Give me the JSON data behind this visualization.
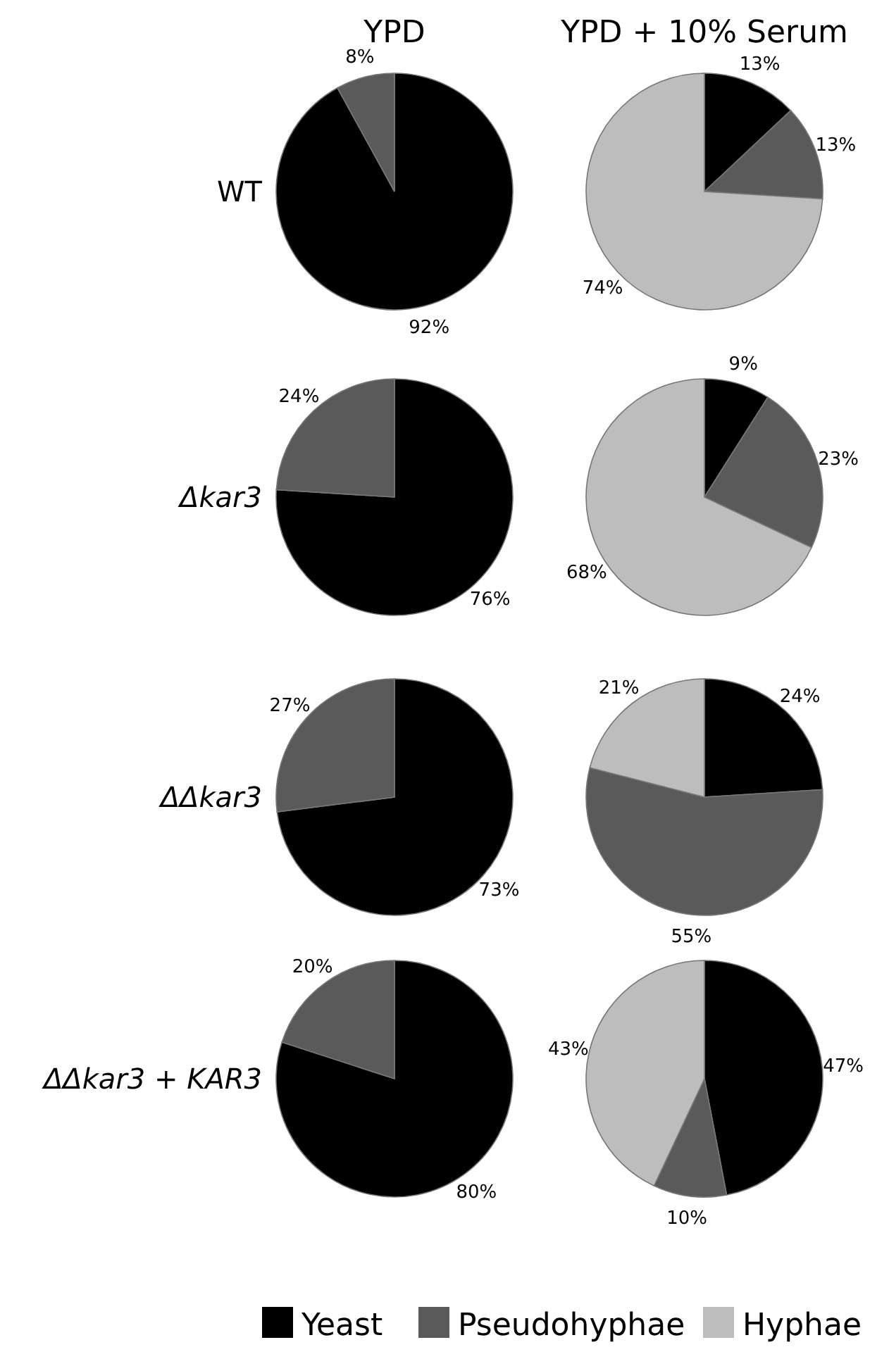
{
  "chart_data": [
    {
      "type": "pie",
      "title": "YPD",
      "ylabel": "WT",
      "categories": [
        "Yeast",
        "Pseudohyphae",
        "Hyphae"
      ],
      "values": [
        92,
        8,
        0
      ],
      "colors": [
        "#000000",
        "#5a5a5a",
        "#bdbdbd"
      ],
      "value_labels": [
        "92%",
        "8%",
        null
      ],
      "legend": "bottom"
    },
    {
      "type": "pie",
      "title": "YPD + 10% Serum",
      "categories": [
        null,
        null,
        null
      ],
      "values": [
        13,
        13,
        74
      ],
      "colors": [
        "#000000",
        "#5a5a5a",
        "#bdbdbd"
      ],
      "value_labels": [
        "13%",
        "13%",
        "74%"
      ]
    },
    {
      "type": "pie",
      "ylabel": "Δkar3",
      "categories": [
        null,
        null
      ],
      "values": [
        76,
        24
      ],
      "colors": [
        "#000000",
        "#5a5a5a"
      ],
      "value_labels": [
        "76%",
        "24%"
      ]
    },
    {
      "type": "pie",
      "categories": [
        null,
        null,
        null
      ],
      "values": [
        9,
        23,
        68
      ],
      "colors": [
        "#000000",
        "#5a5a5a",
        "#bdbdbd"
      ],
      "value_labels": [
        "9%",
        "23%",
        "68%"
      ]
    },
    {
      "type": "pie",
      "ylabel": "ΔΔkar3",
      "categories": [
        null,
        null
      ],
      "values": [
        73,
        27
      ],
      "colors": [
        "#000000",
        "#5a5a5a"
      ],
      "value_labels": [
        "73%",
        "27%"
      ]
    },
    {
      "type": "pie",
      "categories": [
        null,
        null,
        null
      ],
      "values": [
        24,
        55,
        21
      ],
      "colors": [
        "#000000",
        "#5a5a5a",
        "#bdbdbd"
      ],
      "value_labels": [
        "24%",
        "55%",
        "21%"
      ]
    },
    {
      "type": "pie",
      "ylabel": "ΔΔkar3 + KAR3",
      "categories": [
        null,
        null
      ],
      "values": [
        80,
        20
      ],
      "colors": [
        "#000000",
        "#5a5a5a"
      ],
      "value_labels": [
        "80%",
        "20%"
      ]
    },
    {
      "type": "pie",
      "categories": [
        null,
        null,
        null
      ],
      "values": [
        47,
        10,
        43
      ],
      "colors": [
        "#000000",
        "#5a5a5a",
        "#bdbdbd"
      ],
      "value_labels": [
        "47%",
        "10%",
        "43%"
      ]
    }
  ]
}
